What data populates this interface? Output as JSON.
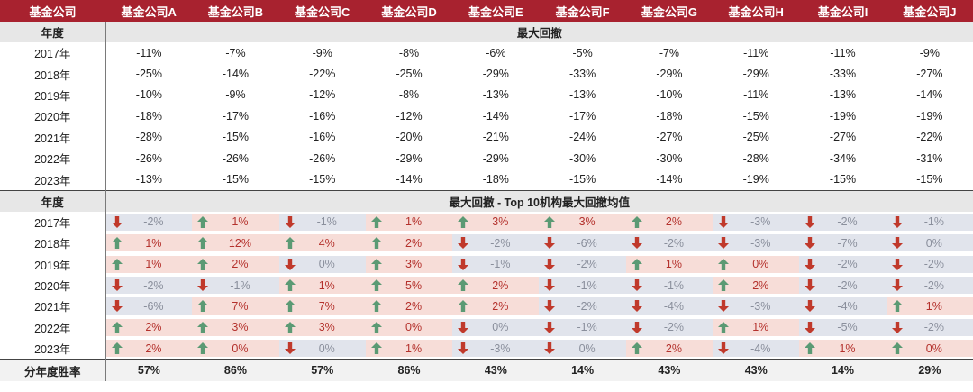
{
  "colors": {
    "header_bg": "#a8222f",
    "up_arrow": "#5b9a74",
    "down_arrow": "#c0392b",
    "up_bg": "#f7ddd8",
    "down_bg": "#e1e4ec"
  },
  "header": {
    "label": "基金公司",
    "funds": [
      "基金公司A",
      "基金公司B",
      "基金公司C",
      "基金公司D",
      "基金公司E",
      "基金公司F",
      "基金公司G",
      "基金公司H",
      "基金公司I",
      "基金公司J"
    ]
  },
  "section1": {
    "year_label": "年度",
    "title": "最大回撤"
  },
  "drawdown": [
    {
      "year": "2017年",
      "values": [
        "-11%",
        "-7%",
        "-9%",
        "-8%",
        "-6%",
        "-5%",
        "-7%",
        "-11%",
        "-11%",
        "-9%"
      ]
    },
    {
      "year": "2018年",
      "values": [
        "-25%",
        "-14%",
        "-22%",
        "-25%",
        "-29%",
        "-33%",
        "-29%",
        "-29%",
        "-33%",
        "-27%"
      ]
    },
    {
      "year": "2019年",
      "values": [
        "-10%",
        "-9%",
        "-12%",
        "-8%",
        "-13%",
        "-13%",
        "-10%",
        "-11%",
        "-13%",
        "-14%"
      ]
    },
    {
      "year": "2020年",
      "values": [
        "-18%",
        "-17%",
        "-16%",
        "-12%",
        "-14%",
        "-17%",
        "-18%",
        "-15%",
        "-19%",
        "-19%"
      ]
    },
    {
      "year": "2021年",
      "values": [
        "-28%",
        "-15%",
        "-16%",
        "-20%",
        "-21%",
        "-24%",
        "-27%",
        "-25%",
        "-27%",
        "-22%"
      ]
    },
    {
      "year": "2022年",
      "values": [
        "-26%",
        "-26%",
        "-26%",
        "-29%",
        "-29%",
        "-30%",
        "-30%",
        "-28%",
        "-34%",
        "-31%"
      ]
    },
    {
      "year": "2023年",
      "values": [
        "-13%",
        "-15%",
        "-15%",
        "-14%",
        "-18%",
        "-15%",
        "-14%",
        "-19%",
        "-15%",
        "-15%"
      ]
    }
  ],
  "section2": {
    "year_label": "年度",
    "title": "最大回撤 - Top 10机构最大回撤均值"
  },
  "comparison": [
    {
      "year": "2017年",
      "cells": [
        {
          "v": "-2%",
          "d": "down"
        },
        {
          "v": "1%",
          "d": "up"
        },
        {
          "v": "-1%",
          "d": "down"
        },
        {
          "v": "1%",
          "d": "up"
        },
        {
          "v": "3%",
          "d": "up"
        },
        {
          "v": "3%",
          "d": "up"
        },
        {
          "v": "2%",
          "d": "up"
        },
        {
          "v": "-3%",
          "d": "down"
        },
        {
          "v": "-2%",
          "d": "down"
        },
        {
          "v": "-1%",
          "d": "down"
        }
      ]
    },
    {
      "year": "2018年",
      "cells": [
        {
          "v": "1%",
          "d": "up"
        },
        {
          "v": "12%",
          "d": "up"
        },
        {
          "v": "4%",
          "d": "up"
        },
        {
          "v": "2%",
          "d": "up"
        },
        {
          "v": "-2%",
          "d": "down"
        },
        {
          "v": "-6%",
          "d": "down"
        },
        {
          "v": "-2%",
          "d": "down"
        },
        {
          "v": "-3%",
          "d": "down"
        },
        {
          "v": "-7%",
          "d": "down"
        },
        {
          "v": "0%",
          "d": "down"
        }
      ]
    },
    {
      "year": "2019年",
      "cells": [
        {
          "v": "1%",
          "d": "up"
        },
        {
          "v": "2%",
          "d": "up"
        },
        {
          "v": "0%",
          "d": "down"
        },
        {
          "v": "3%",
          "d": "up"
        },
        {
          "v": "-1%",
          "d": "down"
        },
        {
          "v": "-2%",
          "d": "down"
        },
        {
          "v": "1%",
          "d": "up"
        },
        {
          "v": "0%",
          "d": "up"
        },
        {
          "v": "-2%",
          "d": "down"
        },
        {
          "v": "-2%",
          "d": "down"
        }
      ]
    },
    {
      "year": "2020年",
      "cells": [
        {
          "v": "-2%",
          "d": "down"
        },
        {
          "v": "-1%",
          "d": "down"
        },
        {
          "v": "1%",
          "d": "up"
        },
        {
          "v": "5%",
          "d": "up"
        },
        {
          "v": "2%",
          "d": "up"
        },
        {
          "v": "-1%",
          "d": "down"
        },
        {
          "v": "-1%",
          "d": "down"
        },
        {
          "v": "2%",
          "d": "up"
        },
        {
          "v": "-2%",
          "d": "down"
        },
        {
          "v": "-2%",
          "d": "down"
        }
      ]
    },
    {
      "year": "2021年",
      "cells": [
        {
          "v": "-6%",
          "d": "down"
        },
        {
          "v": "7%",
          "d": "up"
        },
        {
          "v": "7%",
          "d": "up"
        },
        {
          "v": "2%",
          "d": "up"
        },
        {
          "v": "2%",
          "d": "up"
        },
        {
          "v": "-2%",
          "d": "down"
        },
        {
          "v": "-4%",
          "d": "down"
        },
        {
          "v": "-3%",
          "d": "down"
        },
        {
          "v": "-4%",
          "d": "down"
        },
        {
          "v": "1%",
          "d": "up"
        }
      ]
    },
    {
      "year": "2022年",
      "cells": [
        {
          "v": "2%",
          "d": "up"
        },
        {
          "v": "3%",
          "d": "up"
        },
        {
          "v": "3%",
          "d": "up"
        },
        {
          "v": "0%",
          "d": "up"
        },
        {
          "v": "0%",
          "d": "down"
        },
        {
          "v": "-1%",
          "d": "down"
        },
        {
          "v": "-2%",
          "d": "down"
        },
        {
          "v": "1%",
          "d": "up"
        },
        {
          "v": "-5%",
          "d": "down"
        },
        {
          "v": "-2%",
          "d": "down"
        }
      ]
    },
    {
      "year": "2023年",
      "cells": [
        {
          "v": "2%",
          "d": "up"
        },
        {
          "v": "0%",
          "d": "up"
        },
        {
          "v": "0%",
          "d": "down"
        },
        {
          "v": "1%",
          "d": "up"
        },
        {
          "v": "-3%",
          "d": "down"
        },
        {
          "v": "0%",
          "d": "down"
        },
        {
          "v": "2%",
          "d": "up"
        },
        {
          "v": "-4%",
          "d": "down"
        },
        {
          "v": "1%",
          "d": "up"
        },
        {
          "v": "0%",
          "d": "up"
        }
      ]
    }
  ],
  "win_rate": {
    "label": "分年度胜率",
    "values": [
      "57%",
      "86%",
      "57%",
      "86%",
      "43%",
      "14%",
      "43%",
      "43%",
      "14%",
      "29%"
    ]
  },
  "icons": {
    "up": "arrow-up-icon",
    "down": "arrow-down-icon"
  }
}
